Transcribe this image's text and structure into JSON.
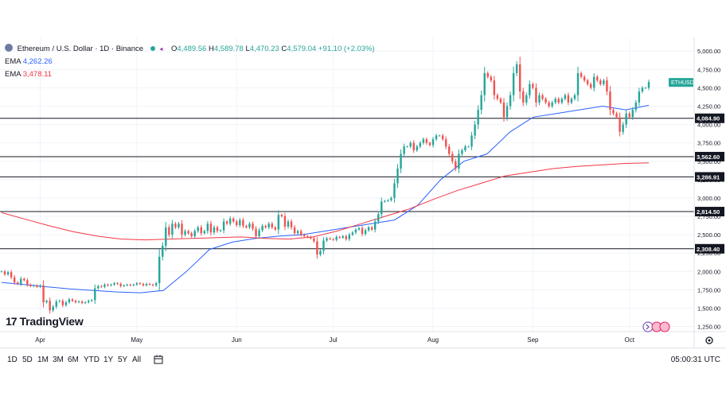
{
  "header": {
    "symbol_title": "Ethereum / U.S. Dollar · 1D · Binance",
    "ohlc": [
      {
        "k": "O",
        "v": "4,489.56"
      },
      {
        "k": "H",
        "v": "4,589.78"
      },
      {
        "k": "L",
        "v": "4,470.23"
      },
      {
        "k": "C",
        "v": "4,579.04"
      }
    ],
    "change": "+91.10 (+2.03%)",
    "ema_fast": {
      "label": "EMA",
      "value": "4,262.26"
    },
    "ema_slow": {
      "label": "EMA",
      "value": "3,478.11"
    }
  },
  "logo": {
    "text": "TradingView"
  },
  "ticker_tag": "ETHUSD",
  "bottom": {
    "ranges": [
      "1D",
      "5D",
      "1M",
      "3M",
      "6M",
      "YTD",
      "1Y",
      "5Y",
      "All"
    ],
    "time": "05:00:31 UTC"
  },
  "colors": {
    "up": "#26a69a",
    "down": "#ef5350",
    "ema_fast": "#2962ff",
    "ema_slow": "#f23645",
    "level_line": "#131722"
  },
  "chart_data": {
    "type": "candlestick",
    "x_axis_labels": [
      "Apr",
      "May",
      "Jun",
      "Jul",
      "Aug",
      "Sep",
      "Oct"
    ],
    "y_axis_ticks": [
      5000,
      4750,
      4500,
      4250,
      4000,
      3750,
      3500,
      3250,
      3000,
      2750,
      2500,
      2250,
      2000,
      1750,
      1500,
      1250
    ],
    "y_axis_tick_labels": [
      "5,000.00",
      "4,750.00",
      "4,500.00",
      "4,250.00",
      "4,000.00",
      "3,750.00",
      "3,500.00",
      "3,250.00",
      "3,000.00",
      "2,750.00",
      "2,500.00",
      "2,250.00",
      "2,000.00",
      "1,750.00",
      "1,500.00",
      "1,250.00"
    ],
    "ylim": [
      1180,
      5100
    ],
    "grid": true,
    "horizontal_levels": [
      {
        "value": 4084.9,
        "label": "4,084.90"
      },
      {
        "value": 3562.6,
        "label": "3,562.60"
      },
      {
        "value": 3286.91,
        "label": "3,286.91"
      },
      {
        "value": 2814.5,
        "label": "2,814.50"
      },
      {
        "value": 2308.4,
        "label": "2,308.40"
      }
    ],
    "last_price_label": "ETHUSD",
    "month_starts": {
      "Apr": "2025-04-01",
      "May": "2025-05-01",
      "Jun": "2025-06-01",
      "Jul": "2025-07-01",
      "Aug": "2025-08-01",
      "Sep": "2025-09-01",
      "Oct": "2025-10-01"
    },
    "first_date": "2025-03-20",
    "candle_closes": [
      2000,
      1960,
      1990,
      1920,
      1850,
      1830,
      1900,
      1880,
      1820,
      1800,
      1810,
      1790,
      1810,
      1580,
      1600,
      1470,
      1520,
      1590,
      1600,
      1540,
      1580,
      1620,
      1600,
      1580,
      1590,
      1570,
      1580,
      1600,
      1610,
      1770,
      1800,
      1790,
      1820,
      1810,
      1820,
      1840,
      1830,
      1800,
      1810,
      1820,
      1810,
      1820,
      1840,
      1830,
      1810,
      1830,
      1820,
      1810,
      1840,
      2200,
      2350,
      2600,
      2500,
      2650,
      2600,
      2650,
      2500,
      2550,
      2520,
      2480,
      2550,
      2600,
      2520,
      2550,
      2650,
      2530,
      2600,
      2550,
      2560,
      2680,
      2650,
      2720,
      2680,
      2630,
      2700,
      2620,
      2600,
      2650,
      2580,
      2480,
      2560,
      2620,
      2600,
      2650,
      2600,
      2570,
      2770,
      2750,
      2610,
      2680,
      2600,
      2520,
      2550,
      2500,
      2480,
      2470,
      2450,
      2410,
      2230,
      2280,
      2420,
      2450,
      2440,
      2430,
      2470,
      2460,
      2480,
      2440,
      2500,
      2530,
      2570,
      2590,
      2510,
      2560,
      2600,
      2570,
      2680,
      2780,
      2950,
      2960,
      2970,
      3000,
      3200,
      3400,
      3600,
      3700,
      3700,
      3750,
      3650,
      3700,
      3750,
      3800,
      3750,
      3720,
      3800,
      3850,
      3850,
      3800,
      3700,
      3600,
      3500,
      3400,
      3600,
      3650,
      3700,
      3700,
      3850,
      4000,
      4200,
      4400,
      4700,
      4650,
      4600,
      4400,
      4350,
      4300,
      4100,
      4250,
      4400,
      4700,
      4820,
      4450,
      4300,
      4400,
      4550,
      4500,
      4300,
      4400,
      4350,
      4300,
      4250,
      4300,
      4350,
      4300,
      4350,
      4400,
      4300,
      4350,
      4400,
      4700,
      4650,
      4600,
      4550,
      4500,
      4650,
      4600,
      4550,
      4600,
      4450,
      4200,
      4150,
      4100,
      3900,
      4000,
      4150,
      4100,
      4200,
      4300,
      4450,
      4500,
      4500,
      4579.04
    ],
    "series": [
      {
        "name": "EMA 4,262.26",
        "values": [
          1850,
          1820,
          1790,
          1760,
          1740,
          1720,
          1710,
          1740,
          2000,
          2300,
          2400,
          2450,
          2480,
          2500,
          2550,
          2600,
          2650,
          2700,
          2900,
          3250,
          3500,
          3600,
          3900,
          4100,
          4150,
          4200,
          4250,
          4200,
          4262.26
        ]
      },
      {
        "name": "EMA 3,478.11",
        "values": [
          2800,
          2710,
          2620,
          2540,
          2480,
          2440,
          2430,
          2440,
          2450,
          2460,
          2470,
          2450,
          2440,
          2470,
          2550,
          2650,
          2750,
          2850,
          2980,
          3100,
          3200,
          3300,
          3350,
          3400,
          3430,
          3450,
          3470,
          3478.11
        ]
      }
    ]
  }
}
